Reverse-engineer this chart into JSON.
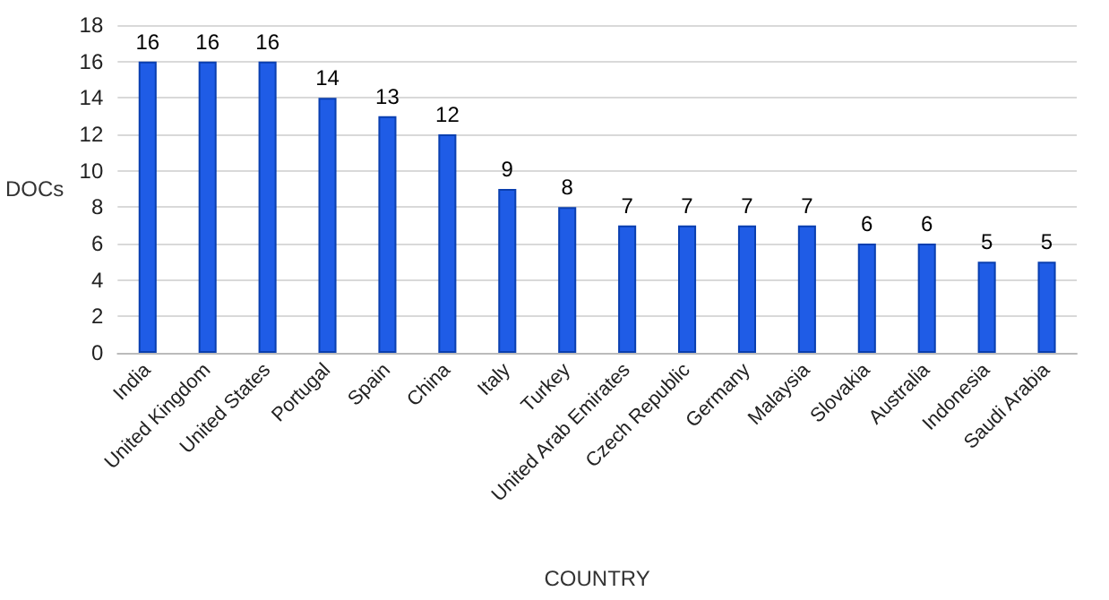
{
  "chart_data": {
    "type": "bar",
    "xlabel": "COUNTRY",
    "ylabel": "DOCs",
    "categories": [
      "India",
      "United Kingdom",
      "United States",
      "Portugal",
      "Spain",
      "China",
      "Italy",
      "Turkey",
      "United Arab Emirates",
      "Czech Republic",
      "Germany",
      "Malaysia",
      "Slovakia",
      "Australia",
      "Indonesia",
      "Saudi Arabia"
    ],
    "values": [
      16,
      16,
      16,
      14,
      13,
      12,
      9,
      8,
      7,
      7,
      7,
      7,
      6,
      6,
      5,
      5
    ],
    "color": "#1f5ce6",
    "ylim": [
      0,
      18
    ],
    "yticks": [
      0,
      2,
      4,
      6,
      8,
      10,
      12,
      14,
      16,
      18
    ],
    "grid": "y",
    "data_labels": true
  }
}
